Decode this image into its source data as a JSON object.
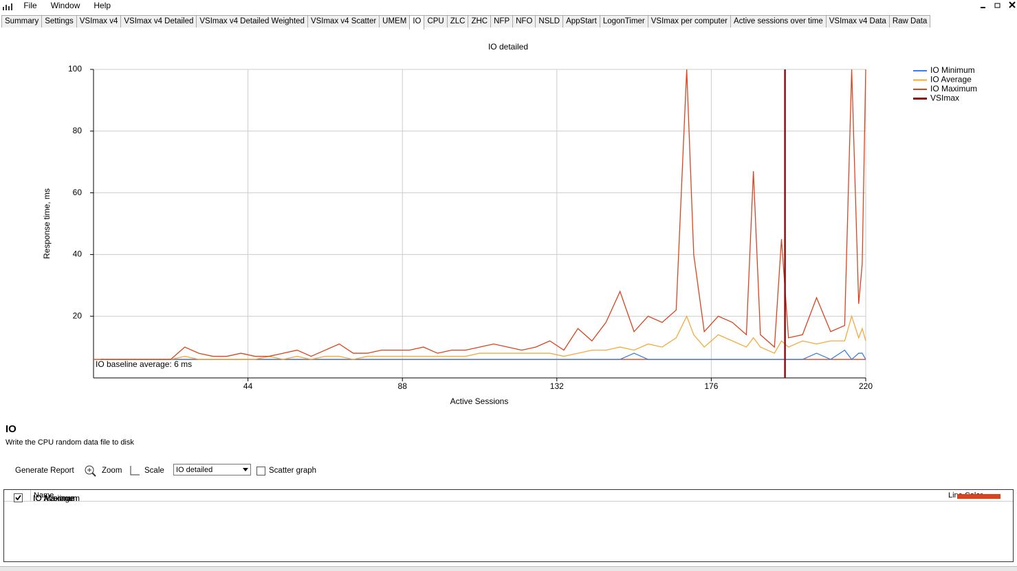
{
  "menu": {
    "items": [
      "File",
      "Window",
      "Help"
    ]
  },
  "tabs": {
    "items": [
      "Summary",
      "Settings",
      "VSImax v4",
      "VSImax v4 Detailed",
      "VSImax v4 Detailed Weighted",
      "VSImax v4 Scatter",
      "UMEM",
      "IO",
      "CPU",
      "ZLC",
      "ZHC",
      "NFP",
      "NFO",
      "NSLD",
      "AppStart",
      "LogonTimer",
      "VSImax per computer",
      "Active sessions over time",
      "VSImax v4 Data",
      "Raw Data"
    ],
    "active": "IO"
  },
  "chart_data": {
    "type": "line",
    "title": "IO detailed",
    "x_label": "Active Sessions",
    "y_label": "Response time, ms",
    "xlim": [
      0,
      220
    ],
    "xticks": [
      44,
      88,
      132,
      176,
      220
    ],
    "ylim": [
      0,
      100
    ],
    "yticks": [
      20,
      40,
      60,
      80,
      100
    ],
    "grid": true,
    "legend": "top-right",
    "x": [
      2,
      6,
      10,
      14,
      18,
      22,
      26,
      30,
      34,
      38,
      42,
      46,
      50,
      54,
      58,
      62,
      66,
      70,
      74,
      78,
      82,
      86,
      90,
      94,
      98,
      102,
      106,
      110,
      114,
      118,
      122,
      126,
      130,
      134,
      138,
      142,
      146,
      150,
      154,
      158,
      162,
      166,
      169,
      171,
      174,
      178,
      182,
      186,
      188,
      190,
      194,
      196,
      198,
      202,
      206,
      210,
      214,
      216,
      218,
      219,
      220
    ],
    "series": [
      {
        "name": "IO Minimum",
        "color": "#3a7fdc",
        "values": [
          6,
          6,
          6,
          6,
          6,
          6,
          6,
          6,
          6,
          6,
          6,
          6,
          6,
          6,
          6,
          6,
          6,
          6,
          6,
          6,
          6,
          6,
          6,
          6,
          6,
          6,
          6,
          6,
          6,
          6,
          6,
          6,
          6,
          6,
          6,
          6,
          6,
          6,
          8,
          6,
          6,
          6,
          6,
          6,
          6,
          6,
          6,
          6,
          6,
          6,
          6,
          6,
          6,
          6,
          8,
          6,
          9,
          6,
          8,
          8,
          6
        ]
      },
      {
        "name": "IO Average",
        "color": "#f5a93a",
        "values": [
          6,
          6,
          6,
          6,
          6,
          6,
          7,
          6,
          6,
          6,
          6,
          6,
          7,
          6,
          7,
          6,
          7,
          7,
          6,
          7,
          7,
          7,
          7,
          7,
          7,
          7,
          7,
          8,
          8,
          8,
          8,
          8,
          8,
          7,
          8,
          9,
          9,
          10,
          9,
          11,
          10,
          13,
          20,
          14,
          10,
          14,
          12,
          10,
          13,
          10,
          8,
          12,
          10,
          12,
          11,
          12,
          12,
          20,
          13,
          16,
          12
        ]
      },
      {
        "name": "IO Maximum",
        "color": "#d9441c",
        "values": [
          6,
          6,
          6,
          6,
          6,
          6,
          10,
          8,
          7,
          7,
          8,
          7,
          7,
          8,
          9,
          7,
          9,
          11,
          8,
          8,
          9,
          9,
          9,
          10,
          8,
          9,
          9,
          10,
          11,
          10,
          9,
          10,
          12,
          9,
          16,
          12,
          18,
          28,
          15,
          20,
          18,
          22,
          100,
          40,
          15,
          20,
          18,
          14,
          67,
          14,
          10,
          45,
          13,
          14,
          26,
          15,
          17,
          100,
          24,
          37,
          100
        ]
      }
    ],
    "vsimax": {
      "name": "VSImax",
      "color": "#8b1010",
      "x": 197
    },
    "baseline": {
      "label": "IO baseline average: 6 ms",
      "value": 6
    }
  },
  "panel": {
    "title": "IO",
    "description": "Write the CPU random data file to disk",
    "toolbar": {
      "generate": "Generate Report",
      "zoom": "Zoom",
      "scale": "Scale",
      "dropdown": "IO detailed",
      "scatter": "Scatter graph"
    }
  },
  "table": {
    "headers": [
      "Name",
      "Line Color"
    ],
    "rows": [
      {
        "checked": true,
        "name": "IO Minimum",
        "color": "#3a7fdc"
      },
      {
        "checked": true,
        "name": "IO Average",
        "color": "#f5a93a"
      },
      {
        "checked": true,
        "name": "IO Maximum",
        "color": "#d9441c"
      }
    ]
  }
}
